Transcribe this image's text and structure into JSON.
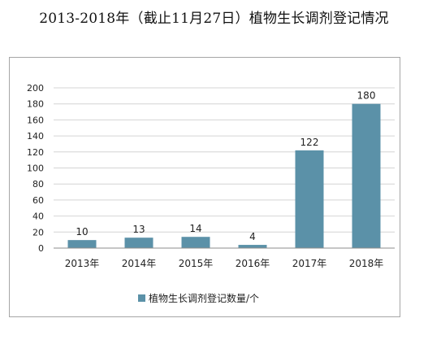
{
  "title": "2013-2018年（截止11月27日）植物生长调剂登记情况",
  "legend_label": "植物生长调剂登记数量/个",
  "colors": {
    "bar": "#5b91a8",
    "grid": "#d4d4d4",
    "axis": "#8c8c8c"
  },
  "chart_data": {
    "type": "bar",
    "title": "2013-2018年（截止11月27日）植物生长调剂登记情况",
    "categories": [
      "2013年",
      "2014年",
      "2015年",
      "2016年",
      "2017年",
      "2018年"
    ],
    "series": [
      {
        "name": "植物生长调剂登记数量/个",
        "values": [
          10,
          13,
          14,
          4,
          122,
          180
        ]
      }
    ],
    "yticks": [
      0,
      20,
      40,
      60,
      80,
      100,
      120,
      140,
      160,
      180,
      200
    ],
    "ylim": [
      0,
      200
    ],
    "grid": true,
    "legend": "bottom",
    "data_labels": true
  }
}
